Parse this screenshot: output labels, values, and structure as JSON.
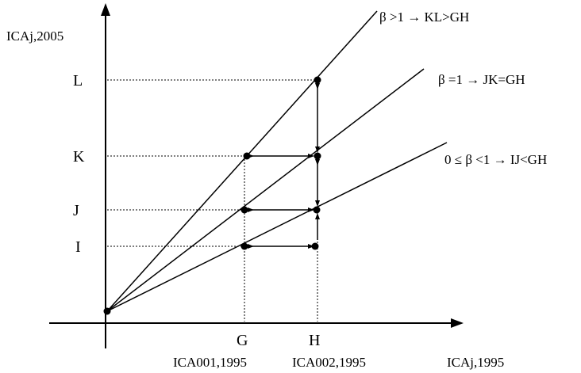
{
  "axes": {
    "y_label": "ICAj,2005",
    "x_label": "ICAj,1995"
  },
  "y_ticks": {
    "L": "L",
    "K": "K",
    "J": "J",
    "I": "I"
  },
  "x_ticks": {
    "G": "G",
    "H": "H",
    "G_sub": "ICA001,1995",
    "H_sub": "ICA002,1995"
  },
  "lines": {
    "steep": "β >1 → KL>GH",
    "unit": "β =1 → JK=GH",
    "flat": "0 ≤ β <1 → IJ<GH"
  }
}
